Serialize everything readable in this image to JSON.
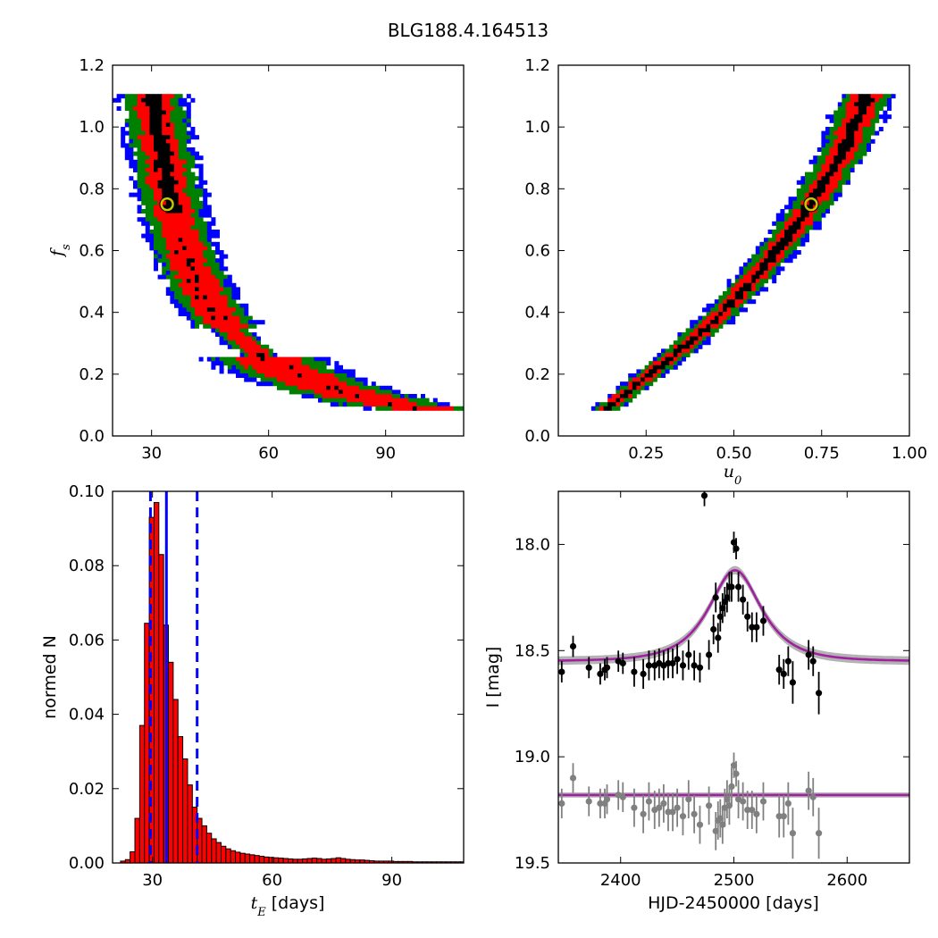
{
  "figure": {
    "title": "BLG188.4.164513"
  },
  "chart_data": [
    {
      "type": "heatmap",
      "panel": "top-left",
      "xlabel": "",
      "ylabel": "f_s",
      "xlim": [
        20,
        110
      ],
      "ylim": [
        0.0,
        1.2
      ],
      "xticks": [
        30,
        60,
        90
      ],
      "yticks": [
        0.0,
        0.2,
        0.4,
        0.6,
        0.8,
        1.0,
        1.2
      ],
      "levels": [
        "black",
        "red",
        "green",
        "blue"
      ],
      "colors": {
        "black": "#000000",
        "red": "#ff0000",
        "green": "#008000",
        "blue": "#0000ff"
      },
      "ridge": {
        "x": [
          30,
          33,
          36,
          40,
          45,
          52,
          60,
          70,
          80,
          92,
          100
        ],
        "y": [
          1.1,
          0.9,
          0.7,
          0.55,
          0.42,
          0.32,
          0.24,
          0.18,
          0.14,
          0.1,
          0.09
        ]
      },
      "best_fit": {
        "x": 34,
        "y": 0.75
      }
    },
    {
      "type": "heatmap",
      "panel": "top-right",
      "xlabel": "u_0",
      "ylabel": "",
      "xlim": [
        0.0,
        1.0
      ],
      "ylim": [
        0.0,
        1.2
      ],
      "xticks": [
        0.25,
        0.5,
        0.75,
        1.0
      ],
      "yticks": [
        0.0,
        0.2,
        0.4,
        0.6,
        0.8,
        1.0,
        1.2
      ],
      "levels": [
        "black",
        "red",
        "green",
        "blue"
      ],
      "colors": {
        "black": "#000000",
        "red": "#ff0000",
        "green": "#008000",
        "blue": "#0000ff"
      },
      "ridge": {
        "x": [
          0.14,
          0.25,
          0.35,
          0.45,
          0.55,
          0.65,
          0.72,
          0.8,
          0.88
        ],
        "y": [
          0.09,
          0.19,
          0.28,
          0.38,
          0.5,
          0.64,
          0.75,
          0.9,
          1.1
        ]
      },
      "best_fit": {
        "x": 0.72,
        "y": 0.75
      }
    },
    {
      "type": "bar",
      "panel": "bottom-left",
      "xlabel": "t_E [days]",
      "ylabel": "normed N",
      "xlim": [
        20,
        108
      ],
      "ylim": [
        0.0,
        0.1
      ],
      "xticks": [
        30,
        60,
        90
      ],
      "yticks": [
        0.0,
        0.02,
        0.04,
        0.06,
        0.08,
        0.1
      ],
      "bin_start": 22,
      "bin_width": 1.2,
      "values": [
        0.0005,
        0.0009,
        0.003,
        0.012,
        0.037,
        0.0645,
        0.093,
        0.097,
        0.083,
        0.064,
        0.054,
        0.044,
        0.034,
        0.028,
        0.021,
        0.015,
        0.012,
        0.01,
        0.008,
        0.0065,
        0.0055,
        0.0045,
        0.0038,
        0.0033,
        0.0029,
        0.0026,
        0.0024,
        0.0022,
        0.002,
        0.0018,
        0.0016,
        0.0015,
        0.0014,
        0.0013,
        0.0012,
        0.0011,
        0.001,
        0.001,
        0.0011,
        0.0012,
        0.0013,
        0.0012,
        0.001,
        0.0011,
        0.0012,
        0.0014,
        0.0012,
        0.001,
        0.0009,
        0.0008,
        0.0008,
        0.0007,
        0.0006,
        0.0005,
        0.0005,
        0.0005,
        0.0005,
        0.0004,
        0.0004,
        0.0004,
        0.0004,
        0.0003,
        0.0003,
        0.0003,
        0.0003,
        0.0003,
        0.0003,
        0.0003,
        0.0003,
        0.0003,
        0.0003,
        0.0003,
        0.0003
      ],
      "bar_color": "#ff0000",
      "vlines": {
        "median": 33.5,
        "lower": 29.5,
        "upper": 41.2,
        "color": "#0000ff"
      }
    },
    {
      "type": "scatter",
      "panel": "bottom-right",
      "xlabel": "HJD-2450000 [days]",
      "ylabel": "I [mag]",
      "xlim": [
        2345,
        2655
      ],
      "ylim": [
        19.5,
        17.75
      ],
      "xticks": [
        2400,
        2500,
        2600
      ],
      "yticks": [
        18.0,
        18.5,
        19.0,
        19.5
      ],
      "series": [
        {
          "color": "#000000",
          "x": [
            2348,
            2358,
            2372,
            2382,
            2386,
            2388,
            2398,
            2402,
            2412,
            2420,
            2425,
            2430,
            2434,
            2438,
            2442,
            2446,
            2450,
            2455,
            2460,
            2465,
            2470,
            2474,
            2478,
            2482,
            2484,
            2486,
            2488,
            2490,
            2492,
            2494,
            2496,
            2498,
            2500,
            2502,
            2504,
            2508,
            2512,
            2516,
            2520,
            2526,
            2540,
            2544,
            2548,
            2552,
            2566,
            2570,
            2575
          ],
          "y": [
            18.6,
            18.48,
            18.58,
            18.61,
            18.59,
            18.58,
            18.55,
            18.56,
            18.6,
            18.61,
            18.57,
            18.57,
            18.56,
            18.57,
            18.56,
            18.56,
            18.54,
            18.57,
            18.52,
            18.57,
            18.58,
            17.77,
            18.52,
            18.4,
            18.25,
            18.44,
            18.34,
            18.3,
            18.27,
            18.25,
            18.2,
            18.2,
            17.99,
            18.02,
            18.2,
            18.26,
            18.34,
            18.39,
            18.39,
            18.36,
            18.59,
            18.61,
            18.55,
            18.65,
            18.52,
            18.55,
            18.7
          ],
          "err": [
            0.05,
            0.05,
            0.05,
            0.05,
            0.05,
            0.05,
            0.05,
            0.05,
            0.07,
            0.07,
            0.07,
            0.07,
            0.07,
            0.07,
            0.07,
            0.07,
            0.07,
            0.07,
            0.07,
            0.07,
            0.07,
            0.05,
            0.07,
            0.07,
            0.07,
            0.07,
            0.07,
            0.07,
            0.07,
            0.07,
            0.07,
            0.07,
            0.05,
            0.05,
            0.07,
            0.07,
            0.07,
            0.07,
            0.07,
            0.07,
            0.07,
            0.07,
            0.07,
            0.1,
            0.07,
            0.07,
            0.1
          ]
        },
        {
          "color": "#808080",
          "x": [
            2348,
            2358,
            2372,
            2382,
            2386,
            2388,
            2398,
            2402,
            2412,
            2420,
            2425,
            2430,
            2434,
            2438,
            2442,
            2446,
            2450,
            2455,
            2460,
            2465,
            2470,
            2478,
            2484,
            2486,
            2488,
            2490,
            2492,
            2494,
            2496,
            2498,
            2500,
            2502,
            2504,
            2508,
            2512,
            2516,
            2520,
            2526,
            2540,
            2544,
            2548,
            2552,
            2566,
            2570,
            2575
          ],
          "y": [
            19.22,
            19.1,
            19.21,
            19.22,
            19.22,
            19.2,
            19.18,
            19.19,
            19.24,
            19.27,
            19.21,
            19.25,
            19.24,
            19.22,
            19.26,
            19.26,
            19.24,
            19.28,
            19.2,
            19.27,
            19.32,
            19.23,
            19.35,
            19.3,
            19.29,
            19.32,
            19.24,
            19.2,
            19.23,
            19.14,
            19.04,
            19.08,
            19.2,
            19.21,
            19.25,
            19.25,
            19.27,
            19.21,
            19.28,
            19.28,
            19.22,
            19.36,
            19.16,
            19.19,
            19.36
          ],
          "err": [
            0.07,
            0.07,
            0.07,
            0.07,
            0.07,
            0.07,
            0.07,
            0.07,
            0.09,
            0.09,
            0.09,
            0.09,
            0.09,
            0.09,
            0.09,
            0.09,
            0.09,
            0.09,
            0.09,
            0.09,
            0.09,
            0.09,
            0.09,
            0.09,
            0.09,
            0.09,
            0.09,
            0.09,
            0.09,
            0.09,
            0.06,
            0.06,
            0.09,
            0.09,
            0.09,
            0.09,
            0.09,
            0.09,
            0.1,
            0.1,
            0.1,
            0.12,
            0.09,
            0.09,
            0.12
          ]
        }
      ],
      "model": {
        "t0": 2501,
        "tE": 34,
        "u0": 0.72,
        "fs": 0.75,
        "baseline_mag": 18.55,
        "residual_baseline": 19.18,
        "curve_color": "#a020a0",
        "band_color": "#808080"
      }
    }
  ]
}
